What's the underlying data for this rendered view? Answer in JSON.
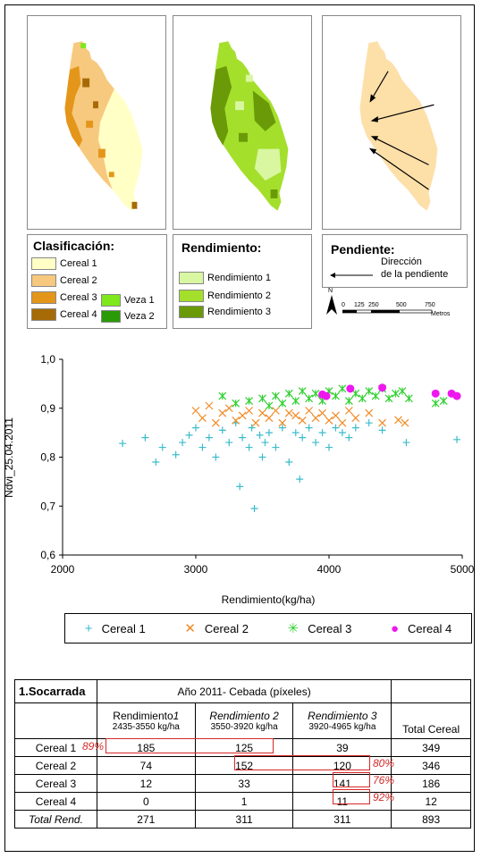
{
  "legends": {
    "clasificacion": {
      "title": "Clasificación:",
      "items": [
        {
          "label": "Cereal 1",
          "color": "#ffffc6"
        },
        {
          "label": "Cereal 2",
          "color": "#f6c97f"
        },
        {
          "label": "Cereal 3",
          "color": "#e4961a"
        },
        {
          "label": "Cereal 4",
          "color": "#a66b06"
        },
        {
          "label": "Veza 1",
          "color": "#7ee81a"
        },
        {
          "label": "Veza 2",
          "color": "#2a9a06"
        }
      ]
    },
    "rendimiento": {
      "title": "Rendimiento:",
      "items": [
        {
          "label": "Rendimiento 1",
          "color": "#d8f7a0"
        },
        {
          "label": "Rendimiento 2",
          "color": "#a4df2c"
        },
        {
          "label": "Rendimiento 3",
          "color": "#6a9a08"
        }
      ]
    },
    "pendiente": {
      "title": "Pendiente:",
      "arrow_label_line1": "Dirección",
      "arrow_label_line2": "de la pendiente",
      "north": "N",
      "scale_ticks": [
        "0",
        "125",
        "250",
        "500",
        "750"
      ],
      "scale_unit": "Metros"
    }
  },
  "chart_data": {
    "type": "scatter",
    "title": "",
    "xlabel": "Rendimiento(kg/ha)",
    "ylabel": "Ndvi_25.04.2011",
    "xlim": [
      2000,
      5000
    ],
    "ylim": [
      0.6,
      1.0
    ],
    "xticks": [
      "2000",
      "3000",
      "4000",
      "5000"
    ],
    "yticks": [
      "0,6",
      "0,7",
      "0,8",
      "0,9",
      "1,0"
    ],
    "legend_position": "bottom",
    "series": [
      {
        "name": "Cereal 1",
        "marker": "plus",
        "color": "#3bbccb",
        "points": [
          [
            2450,
            0.828
          ],
          [
            2620,
            0.84
          ],
          [
            2700,
            0.79
          ],
          [
            2750,
            0.82
          ],
          [
            2850,
            0.805
          ],
          [
            2900,
            0.83
          ],
          [
            2950,
            0.845
          ],
          [
            3000,
            0.86
          ],
          [
            3050,
            0.82
          ],
          [
            3100,
            0.84
          ],
          [
            3150,
            0.8
          ],
          [
            3200,
            0.855
          ],
          [
            3250,
            0.83
          ],
          [
            3300,
            0.87
          ],
          [
            3330,
            0.74
          ],
          [
            3350,
            0.84
          ],
          [
            3400,
            0.82
          ],
          [
            3420,
            0.86
          ],
          [
            3440,
            0.695
          ],
          [
            3480,
            0.845
          ],
          [
            3500,
            0.8
          ],
          [
            3520,
            0.83
          ],
          [
            3550,
            0.85
          ],
          [
            3600,
            0.82
          ],
          [
            3650,
            0.86
          ],
          [
            3700,
            0.79
          ],
          [
            3750,
            0.85
          ],
          [
            3780,
            0.755
          ],
          [
            3800,
            0.84
          ],
          [
            3850,
            0.86
          ],
          [
            3900,
            0.83
          ],
          [
            3950,
            0.85
          ],
          [
            4000,
            0.82
          ],
          [
            4050,
            0.86
          ],
          [
            4100,
            0.85
          ],
          [
            4150,
            0.84
          ],
          [
            4200,
            0.86
          ],
          [
            4300,
            0.87
          ],
          [
            4400,
            0.855
          ],
          [
            4580,
            0.83
          ],
          [
            4960,
            0.836
          ]
        ]
      },
      {
        "name": "Cereal 2",
        "marker": "x",
        "color": "#f08a24",
        "points": [
          [
            3000,
            0.895
          ],
          [
            3050,
            0.88
          ],
          [
            3100,
            0.905
          ],
          [
            3150,
            0.87
          ],
          [
            3200,
            0.89
          ],
          [
            3250,
            0.9
          ],
          [
            3300,
            0.875
          ],
          [
            3350,
            0.885
          ],
          [
            3400,
            0.895
          ],
          [
            3450,
            0.87
          ],
          [
            3500,
            0.89
          ],
          [
            3550,
            0.88
          ],
          [
            3600,
            0.895
          ],
          [
            3650,
            0.87
          ],
          [
            3700,
            0.89
          ],
          [
            3750,
            0.885
          ],
          [
            3800,
            0.875
          ],
          [
            3850,
            0.895
          ],
          [
            3900,
            0.88
          ],
          [
            3950,
            0.89
          ],
          [
            4000,
            0.875
          ],
          [
            4050,
            0.885
          ],
          [
            4100,
            0.87
          ],
          [
            4150,
            0.895
          ],
          [
            4200,
            0.88
          ],
          [
            4300,
            0.89
          ],
          [
            4400,
            0.87
          ],
          [
            4520,
            0.876
          ],
          [
            4570,
            0.87
          ]
        ]
      },
      {
        "name": "Cereal 3",
        "marker": "star",
        "color": "#2ed02e",
        "points": [
          [
            3200,
            0.925
          ],
          [
            3300,
            0.91
          ],
          [
            3400,
            0.915
          ],
          [
            3500,
            0.92
          ],
          [
            3550,
            0.905
          ],
          [
            3600,
            0.925
          ],
          [
            3650,
            0.91
          ],
          [
            3700,
            0.93
          ],
          [
            3750,
            0.915
          ],
          [
            3800,
            0.935
          ],
          [
            3850,
            0.92
          ],
          [
            3900,
            0.93
          ],
          [
            3950,
            0.915
          ],
          [
            4000,
            0.935
          ],
          [
            4050,
            0.925
          ],
          [
            4100,
            0.94
          ],
          [
            4150,
            0.915
          ],
          [
            4200,
            0.93
          ],
          [
            4250,
            0.92
          ],
          [
            4300,
            0.935
          ],
          [
            4350,
            0.925
          ],
          [
            4400,
            0.94
          ],
          [
            4450,
            0.92
          ],
          [
            4500,
            0.93
          ],
          [
            4550,
            0.935
          ],
          [
            4600,
            0.92
          ],
          [
            4800,
            0.91
          ],
          [
            4860,
            0.915
          ]
        ]
      },
      {
        "name": "Cereal 4",
        "marker": "dot",
        "color": "#ee18ee",
        "points": [
          [
            3950,
            0.928
          ],
          [
            3980,
            0.925
          ],
          [
            4160,
            0.94
          ],
          [
            4400,
            0.942
          ],
          [
            4800,
            0.93
          ],
          [
            4920,
            0.93
          ],
          [
            4960,
            0.925
          ]
        ]
      }
    ]
  },
  "table": {
    "title": "1.Socarrada",
    "group_header": "Año 2011- Cebada (píxeles)",
    "cols": [
      {
        "name": "Rendimiento",
        "suffix": "1",
        "range": "2435-3550 kg/ha"
      },
      {
        "name": "Rendimiento 2",
        "suffix": "",
        "range": "3550-3920 kg/ha"
      },
      {
        "name": "Rendimiento 3",
        "suffix": "",
        "range": "3920-4965 kg/ha"
      }
    ],
    "total_col": "Total Cereal",
    "rows": [
      {
        "label": "Cereal 1",
        "values": [
          "185",
          "125",
          "39"
        ],
        "total": "349"
      },
      {
        "label": "Cereal 2",
        "values": [
          "74",
          "152",
          "120"
        ],
        "total": "346"
      },
      {
        "label": "Cereal 3",
        "values": [
          "12",
          "33",
          "141"
        ],
        "total": "186"
      },
      {
        "label": "Cereal 4",
        "values": [
          "0",
          "1",
          "11"
        ],
        "total": "12"
      }
    ],
    "total_row": {
      "label": "Total Rend.",
      "values": [
        "271",
        "311",
        "311"
      ],
      "total": "893"
    },
    "percent_annotations": [
      "89%",
      "80%",
      "76%",
      "92%"
    ]
  }
}
